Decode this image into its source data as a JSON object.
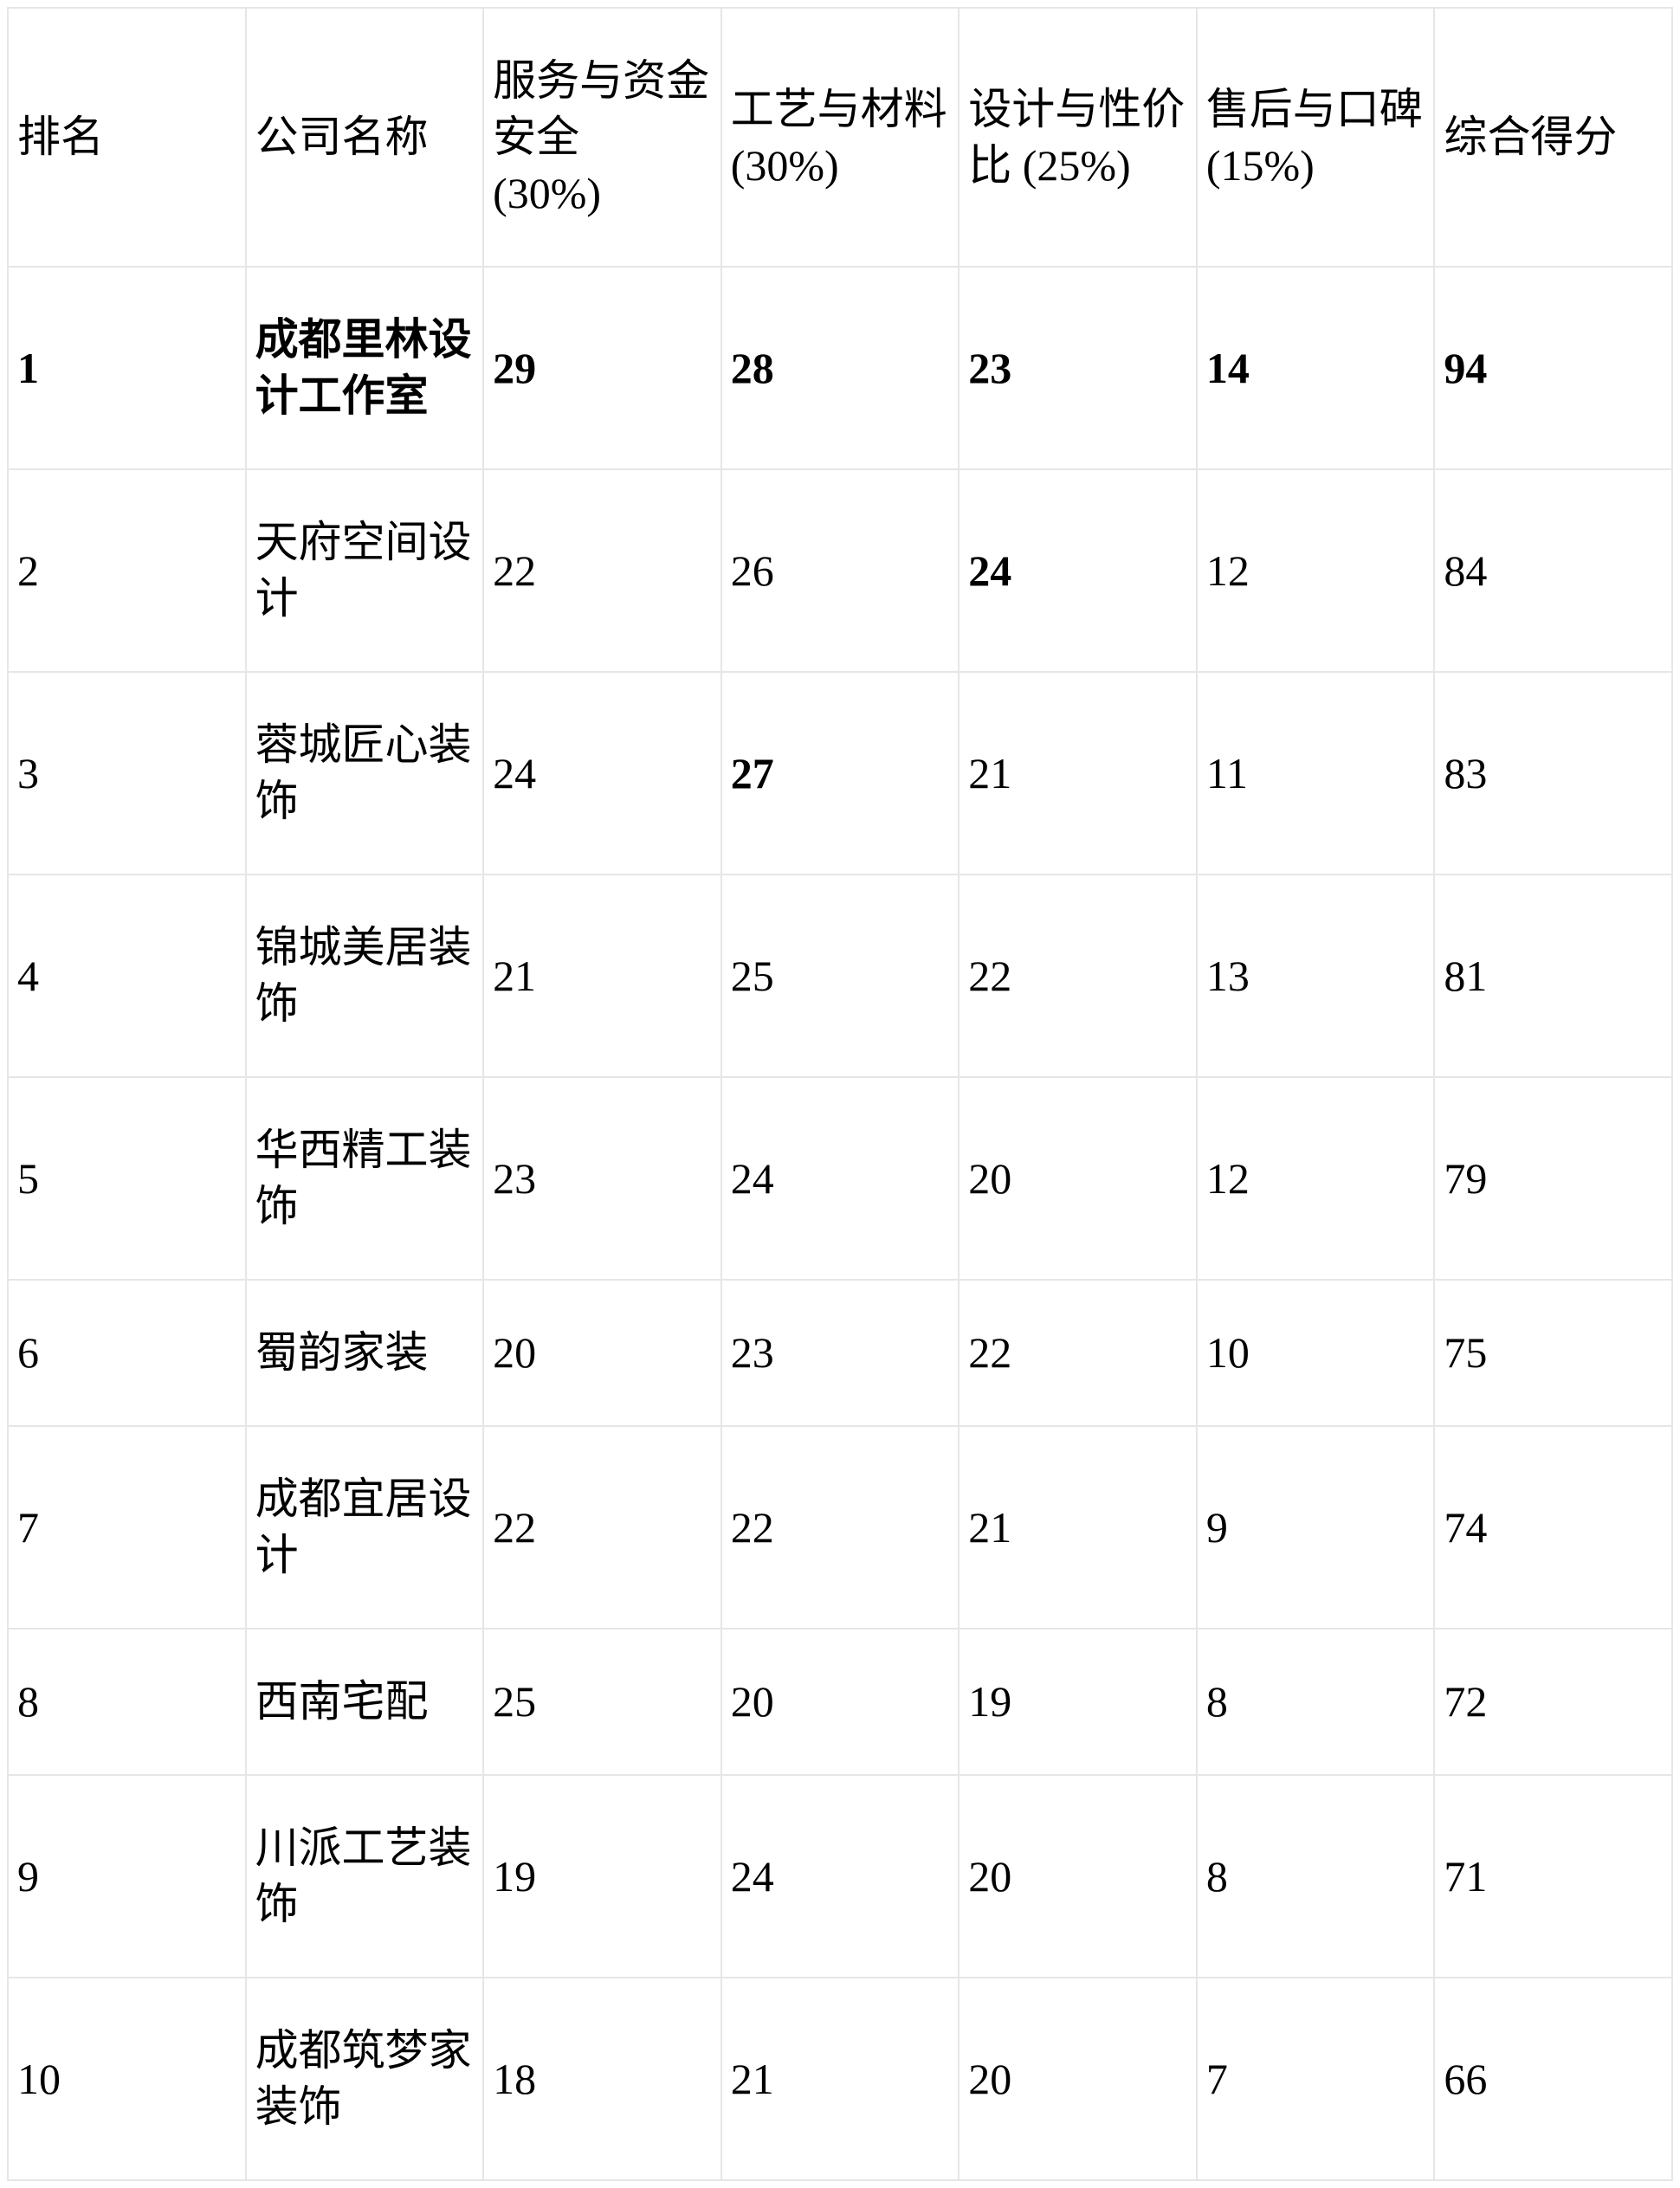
{
  "colors": {
    "background": "#ffffff",
    "text": "#000000",
    "border": "#e6e6e6"
  },
  "table": {
    "header": [
      "排名",
      "公司名称",
      "服务与资金\n安全\n(30%)",
      "工艺与材料\n(30%)",
      "设计与性价\n比 (25%)",
      "售后与口碑\n(15%)",
      "综合得分"
    ],
    "rows": [
      [
        "1",
        "成都里林设\n计工作室",
        "29",
        "28",
        "23",
        "14",
        "94"
      ],
      [
        "2",
        "天府空间设\n计",
        "22",
        "26",
        "24",
        "12",
        "84"
      ],
      [
        "3",
        "蓉城匠心装\n饰",
        "24",
        "27",
        "21",
        "11",
        "83"
      ],
      [
        "4",
        "锦城美居装\n饰",
        "21",
        "25",
        "22",
        "13",
        "81"
      ],
      [
        "5",
        "华西精工装\n饰",
        "23",
        "24",
        "20",
        "12",
        "79"
      ],
      [
        "6",
        "蜀韵家装",
        "20",
        "23",
        "22",
        "10",
        "75"
      ],
      [
        "7",
        "成都宜居设\n计",
        "22",
        "22",
        "21",
        "9",
        "74"
      ],
      [
        "8",
        "西南宅配",
        "25",
        "20",
        "19",
        "8",
        "72"
      ],
      [
        "9",
        "川派工艺装\n饰",
        "19",
        "24",
        "20",
        "8",
        "71"
      ],
      [
        "10",
        "成都筑梦家\n装饰",
        "18",
        "21",
        "20",
        "7",
        "66"
      ]
    ]
  },
  "chart_data": {
    "type": "table",
    "columns": [
      "排名",
      "公司名称",
      "服务与资金安全 (30%)",
      "工艺与材料 (30%)",
      "设计与性价比 (25%)",
      "售后与口碑 (15%)",
      "综合得分"
    ],
    "rows": [
      {
        "rank": 1,
        "company": "成都里林设计工作室",
        "service_fund_safety": 29,
        "craft_materials": 28,
        "design_value": 23,
        "aftersales_reputation": 14,
        "total_score": 94
      },
      {
        "rank": 2,
        "company": "天府空间设计",
        "service_fund_safety": 22,
        "craft_materials": 26,
        "design_value": 24,
        "aftersales_reputation": 12,
        "total_score": 84
      },
      {
        "rank": 3,
        "company": "蓉城匠心装饰",
        "service_fund_safety": 24,
        "craft_materials": 27,
        "design_value": 21,
        "aftersales_reputation": 11,
        "total_score": 83
      },
      {
        "rank": 4,
        "company": "锦城美居装饰",
        "service_fund_safety": 21,
        "craft_materials": 25,
        "design_value": 22,
        "aftersales_reputation": 13,
        "total_score": 81
      },
      {
        "rank": 5,
        "company": "华西精工装饰",
        "service_fund_safety": 23,
        "craft_materials": 24,
        "design_value": 20,
        "aftersales_reputation": 12,
        "total_score": 79
      },
      {
        "rank": 6,
        "company": "蜀韵家装",
        "service_fund_safety": 20,
        "craft_materials": 23,
        "design_value": 22,
        "aftersales_reputation": 10,
        "total_score": 75
      },
      {
        "rank": 7,
        "company": "成都宜居设计",
        "service_fund_safety": 22,
        "craft_materials": 22,
        "design_value": 21,
        "aftersales_reputation": 9,
        "total_score": 74
      },
      {
        "rank": 8,
        "company": "西南宅配",
        "service_fund_safety": 25,
        "craft_materials": 20,
        "design_value": 19,
        "aftersales_reputation": 8,
        "total_score": 72
      },
      {
        "rank": 9,
        "company": "川派工艺装饰",
        "service_fund_safety": 19,
        "craft_materials": 24,
        "design_value": 20,
        "aftersales_reputation": 8,
        "total_score": 71
      },
      {
        "rank": 10,
        "company": "成都筑梦家装饰",
        "service_fund_safety": 18,
        "craft_materials": 21,
        "design_value": 20,
        "aftersales_reputation": 7,
        "total_score": 66
      }
    ],
    "emphasis_bold": [
      {
        "row_rank": 1,
        "cells": "all cells in row"
      },
      {
        "row_rank": 2,
        "cells": "设计与性价比 (25%) value 24"
      },
      {
        "row_rank": 3,
        "cells": "工艺与材料 (30%) value 27"
      }
    ],
    "layout_hints": {
      "grid": true,
      "columns_equal_width": true,
      "header_position": "top",
      "text_align": "left"
    }
  }
}
